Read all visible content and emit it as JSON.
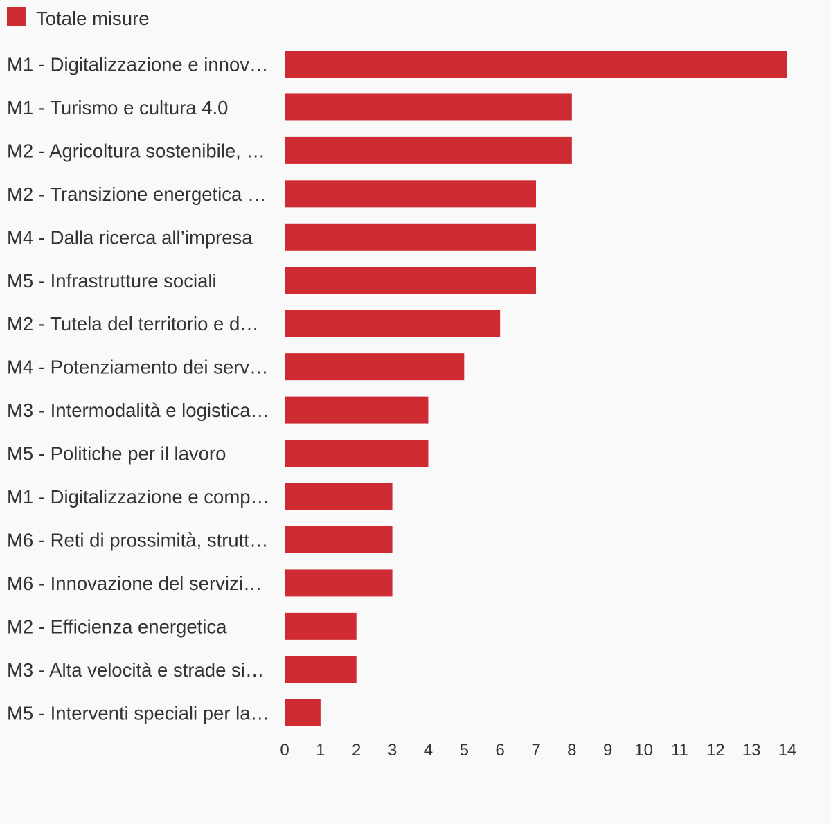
{
  "chart_data": {
    "type": "bar",
    "orientation": "horizontal",
    "title": "",
    "xlabel": "",
    "ylabel": "",
    "xlim": [
      0,
      14
    ],
    "grid": false,
    "legend_position": "top-left",
    "colors": {
      "bar": "#cf2b32",
      "text": "#333333",
      "background": "#f9f9f9"
    },
    "series": [
      {
        "name": "Totale misure",
        "color": "#cf2b32"
      }
    ],
    "categories": [
      "M1 - Digitalizzazione e innov…",
      "M1 - Turismo e cultura 4.0",
      "M2 - Agricoltura sostenibile, …",
      "M2 - Transizione energetica …",
      "M4 - Dalla ricerca all’impresa",
      "M5 - Infrastrutture sociali",
      "M2 - Tutela del territorio e d…",
      "M4 - Potenziamento dei serv…",
      "M3 - Intermodalità e logistica…",
      "M5 - Politiche per il lavoro",
      "M1 - Digitalizzazione e comp…",
      "M6 - Reti di prossimità, strutt…",
      "M6 - Innovazione del servizi…",
      "M2 - Efficienza energetica",
      "M3 - Alta velocità e strade si…",
      "M5 - Interventi speciali per la…"
    ],
    "values": [
      14,
      8,
      8,
      7,
      7,
      7,
      6,
      5,
      4,
      4,
      3,
      3,
      3,
      2,
      2,
      1
    ],
    "x_ticks": [
      "0",
      "1",
      "2",
      "3",
      "4",
      "5",
      "6",
      "7",
      "8",
      "9",
      "10",
      "11",
      "12",
      "13",
      "14"
    ]
  }
}
